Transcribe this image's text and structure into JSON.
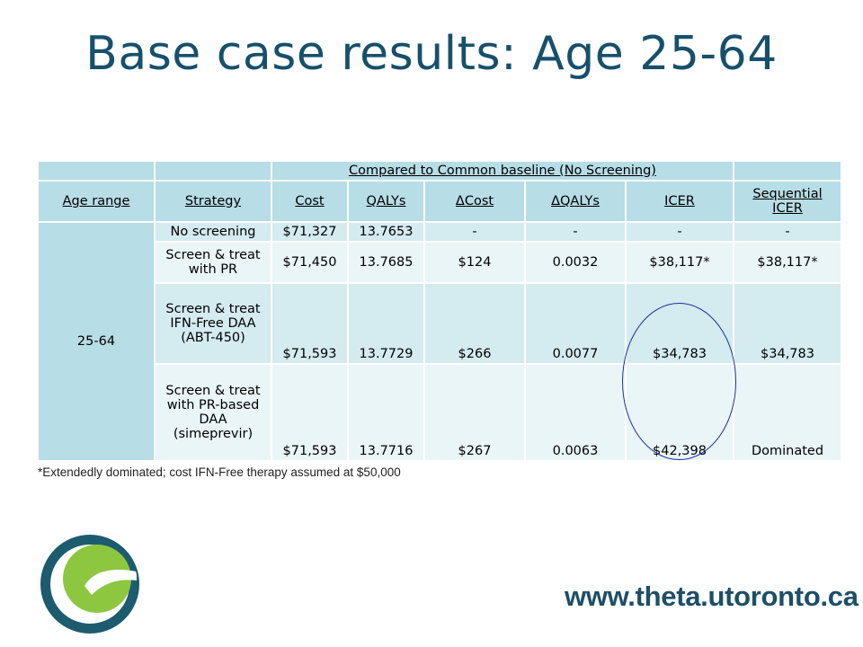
{
  "slide": {
    "title": "Base case results: Age 25-64",
    "footnote": "*Extendedly dominated; cost IFN-Free therapy assumed at $50,000",
    "url": "www.theta.utoronto.ca"
  },
  "table": {
    "group_header": "Compared to Common baseline (No Screening)",
    "columns": [
      "Age range",
      "Strategy",
      "Cost",
      "QALYs",
      "ΔCost",
      "ΔQALYs",
      "ICER",
      "Sequential ICER"
    ],
    "age_range": "25-64",
    "rows": [
      {
        "strategy": "No screening",
        "cost": "$71,327",
        "qalys": "13.7653",
        "dcost": "-",
        "dqalys": "-",
        "icer": "-",
        "seq_icer": "-"
      },
      {
        "strategy": "Screen & treat with PR",
        "cost": "$71,450",
        "qalys": "13.7685",
        "dcost": "$124",
        "dqalys": "0.0032",
        "icer": "$38,117*",
        "seq_icer": "$38,117*"
      },
      {
        "strategy": "Screen & treat IFN-Free DAA (ABT-450)",
        "cost": "$71,593",
        "qalys": "13.7729",
        "dcost": "$266",
        "dqalys": "0.0077",
        "icer": "$34,783",
        "seq_icer": "$34,783"
      },
      {
        "strategy": "Screen & treat with PR-based DAA (simeprevir)",
        "cost": "$71,593",
        "qalys": "13.7716",
        "dcost": "$267",
        "dqalys": "0.0063",
        "icer": "$42,398",
        "seq_icer": "Dominated"
      }
    ]
  },
  "colors": {
    "title": "#17506b",
    "table_header": "#b7dde6",
    "row_a": "#d4ebf0",
    "row_b": "#eaf5f8",
    "circle": "#1f2f9e",
    "logo_teal": "#1d5b6e",
    "logo_green": "#8dc63f"
  },
  "icons": {
    "logo": "theta-logo-icon",
    "annotation": "circle-annotation"
  }
}
